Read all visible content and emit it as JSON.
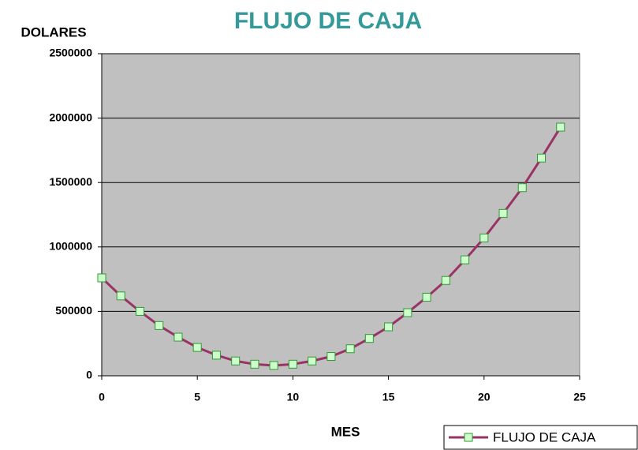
{
  "chart_data": {
    "type": "line",
    "title": "FLUJO DE CAJA",
    "ylabel": "DOLARES",
    "xlabel": "MES",
    "x": [
      0,
      1,
      2,
      3,
      4,
      5,
      6,
      7,
      8,
      9,
      10,
      11,
      12,
      13,
      14,
      15,
      16,
      17,
      18,
      19,
      20,
      21,
      22,
      23,
      24
    ],
    "series": [
      {
        "name": "FLUJO DE CAJA",
        "color": "#993366",
        "marker_color": "#ccffcc",
        "marker_edge": "#339933",
        "values": [
          760000,
          620000,
          500000,
          390000,
          300000,
          220000,
          160000,
          115000,
          90000,
          80000,
          90000,
          115000,
          150000,
          210000,
          290000,
          380000,
          490000,
          610000,
          740000,
          900000,
          1070000,
          1260000,
          1460000,
          1690000,
          1930000
        ]
      }
    ],
    "xlim": [
      0,
      25
    ],
    "xticks": [
      0,
      5,
      10,
      15,
      20,
      25
    ],
    "ylim": [
      0,
      2500000
    ],
    "yticks": [
      0,
      500000,
      1000000,
      1500000,
      2000000,
      2500000
    ],
    "grid": true,
    "legend": "bottom-right",
    "plot_background": "#c0c0c0",
    "title_color": "#339999"
  }
}
